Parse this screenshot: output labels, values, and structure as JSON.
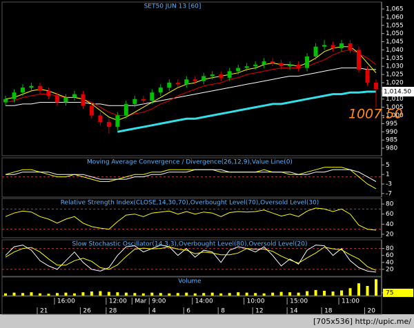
{
  "chart_data": [
    {
      "type": "candlestick",
      "title": "SET50 JUN 13  [60]",
      "open": [
        1008,
        1010,
        1014,
        1017,
        1018,
        1015,
        1012,
        1008,
        1011,
        1013,
        1006,
        1000,
        996,
        993,
        1000,
        1007,
        1010,
        1009,
        1014,
        1017,
        1020,
        1019,
        1022,
        1021,
        1024,
        1025,
        1023,
        1027,
        1029,
        1030,
        1031,
        1033,
        1032,
        1030,
        1031,
        1029,
        1036,
        1042,
        1043,
        1041,
        1044,
        1040,
        1028,
        1020
      ],
      "high": [
        1012,
        1016,
        1019,
        1020,
        1020,
        1017,
        1014,
        1013,
        1015,
        1015,
        1008,
        1002,
        998,
        1002,
        1009,
        1012,
        1012,
        1016,
        1019,
        1022,
        1022,
        1024,
        1024,
        1026,
        1027,
        1027,
        1029,
        1031,
        1032,
        1033,
        1035,
        1035,
        1034,
        1033,
        1033,
        1038,
        1044,
        1046,
        1045,
        1046,
        1046,
        1042,
        1030,
        1022
      ],
      "low": [
        1006,
        1008,
        1012,
        1015,
        1013,
        1010,
        1006,
        1006,
        1009,
        1004,
        998,
        994,
        989,
        991,
        998,
        1005,
        1007,
        1007,
        1012,
        1015,
        1017,
        1017,
        1019,
        1019,
        1022,
        1021,
        1021,
        1025,
        1027,
        1028,
        1029,
        1030,
        1028,
        1028,
        1027,
        1027,
        1034,
        1040,
        1039,
        1039,
        1038,
        1026,
        1018,
        1005
      ],
      "close": [
        1010,
        1014,
        1017,
        1018,
        1015,
        1012,
        1008,
        1011,
        1013,
        1006,
        1000,
        996,
        993,
        1000,
        1007,
        1010,
        1009,
        1014,
        1017,
        1020,
        1019,
        1022,
        1021,
        1024,
        1025,
        1023,
        1027,
        1029,
        1030,
        1031,
        1033,
        1032,
        1030,
        1031,
        1029,
        1036,
        1042,
        1043,
        1041,
        1044,
        1040,
        1028,
        1020,
        1016
      ],
      "color_up": "#00c000",
      "color_down": "#e00000",
      "overlays": [
        {
          "color": "#ffffff",
          "width": 1,
          "values": [
            1006,
            1006,
            1007,
            1007,
            1008,
            1008,
            1008,
            1008,
            1008,
            1008,
            1007,
            1007,
            1006,
            1006,
            1006,
            1006,
            1007,
            1008,
            1009,
            1010,
            1011,
            1012,
            1013,
            1014,
            1015,
            1016,
            1017,
            1018,
            1019,
            1020,
            1021,
            1022,
            1023,
            1024,
            1024,
            1025,
            1026,
            1027,
            1028,
            1029,
            1029,
            1029,
            1028,
            1028
          ]
        },
        {
          "color": "#e00000",
          "width": 1,
          "values": [
            1008,
            1009,
            1011,
            1012,
            1013,
            1013,
            1012,
            1011,
            1011,
            1010,
            1008,
            1005,
            1002,
            1000,
            1000,
            1001,
            1002,
            1004,
            1007,
            1009,
            1012,
            1014,
            1016,
            1018,
            1019,
            1020,
            1022,
            1023,
            1025,
            1026,
            1027,
            1028,
            1029,
            1029,
            1029,
            1030,
            1032,
            1034,
            1037,
            1039,
            1040,
            1038,
            1035,
            1031
          ]
        },
        {
          "color": "#ffff00",
          "width": 1,
          "values": [
            1010,
            1011,
            1013,
            1015,
            1016,
            1015,
            1013,
            1011,
            1011,
            1010,
            1007,
            1003,
            999,
            997,
            999,
            1002,
            1005,
            1008,
            1011,
            1014,
            1017,
            1019,
            1020,
            1022,
            1023,
            1024,
            1025,
            1026,
            1028,
            1029,
            1031,
            1032,
            1031,
            1031,
            1030,
            1032,
            1035,
            1039,
            1041,
            1042,
            1042,
            1038,
            1032,
            1026
          ]
        },
        {
          "color": "#33e0e8",
          "width": 3,
          "values": [
            null,
            null,
            null,
            null,
            null,
            null,
            null,
            null,
            null,
            null,
            null,
            null,
            null,
            990,
            991,
            992,
            993,
            994,
            995,
            996,
            997,
            998,
            998,
            999,
            1000,
            1001,
            1002,
            1003,
            1004,
            1005,
            1006,
            1007,
            1007,
            1008,
            1009,
            1010,
            1011,
            1012,
            1013,
            1013,
            1014,
            1014,
            1014.5,
            1014.5
          ]
        }
      ],
      "ylim": [
        975.4,
        1069.2
      ],
      "yticks": [
        980,
        985,
        990,
        995,
        {
          "value": 1000,
          "label": "1,000"
        },
        {
          "value": 1005,
          "label": "1,005"
        },
        {
          "value": 1010,
          "label": "1,010"
        },
        {
          "value": 1015,
          "label": "1,015"
        },
        {
          "value": 1020,
          "label": "1,020"
        },
        {
          "value": 1025,
          "label": "1,025"
        },
        {
          "value": 1030,
          "label": "1,030"
        },
        {
          "value": 1035,
          "label": "1,035"
        },
        {
          "value": 1040,
          "label": "1,040"
        },
        {
          "value": 1045,
          "label": "1,045"
        },
        {
          "value": 1050,
          "label": "1,050"
        },
        {
          "value": 1055,
          "label": "1,055"
        },
        {
          "value": 1060,
          "label": "1,060"
        },
        {
          "value": 1065,
          "label": "1,065"
        }
      ],
      "last_price": {
        "value": 1014.5,
        "label": "1,014.50"
      },
      "annotation": "1007.50",
      "annotation_color": "#ff8c1a"
    },
    {
      "type": "line",
      "title": "Moving Average Convergence / Divergence(26,12,9),Value Line(0)",
      "series": [
        {
          "color": "#ffff00",
          "values": [
            1,
            2,
            3,
            3,
            2,
            1,
            0,
            0,
            1,
            0,
            -1,
            -2,
            -2,
            -1,
            0,
            1,
            1,
            2,
            2,
            3,
            3,
            3,
            3,
            3,
            3,
            2,
            2,
            2,
            2,
            2,
            3,
            2,
            2,
            1,
            1,
            2,
            3,
            4,
            4,
            4,
            3,
            0,
            -3,
            -5
          ]
        },
        {
          "color": "#ffffff",
          "values": [
            1,
            1,
            2,
            2,
            2,
            2,
            1,
            1,
            1,
            1,
            0,
            -1,
            -1,
            -1,
            -1,
            0,
            0,
            1,
            1,
            2,
            2,
            2,
            3,
            3,
            3,
            3,
            2,
            2,
            2,
            2,
            2,
            2,
            2,
            2,
            1,
            1,
            2,
            2,
            3,
            3,
            3,
            2,
            0,
            -2
          ]
        }
      ],
      "ylim": [
        -8.5,
        8
      ],
      "yticks": [
        5,
        1,
        -3,
        -7
      ],
      "ref_lines": [
        0
      ]
    },
    {
      "type": "line",
      "title": "Relative Strength Index(CLOSE,14,30,70),Overbought Level(70),Oversold Level(30)",
      "series": [
        {
          "color": "#ffff00",
          "values": [
            55,
            62,
            66,
            64,
            55,
            50,
            42,
            50,
            55,
            42,
            35,
            32,
            30,
            45,
            58,
            60,
            55,
            62,
            64,
            66,
            60,
            65,
            60,
            64,
            62,
            55,
            63,
            65,
            64,
            65,
            68,
            62,
            56,
            60,
            55,
            66,
            72,
            70,
            65,
            70,
            60,
            38,
            30,
            28
          ]
        }
      ],
      "ylim": [
        13,
        91
      ],
      "yticks": [
        80,
        60,
        40,
        20
      ],
      "ref_lines": [
        70,
        30
      ]
    },
    {
      "type": "line",
      "title": "Slow Stochastic Oscillator(14,3,3),Overbought Level(80),Oversold Level(20)",
      "series": [
        {
          "color": "#ffffff",
          "values": [
            60,
            85,
            90,
            75,
            45,
            30,
            20,
            45,
            70,
            40,
            20,
            15,
            25,
            60,
            85,
            88,
            70,
            80,
            90,
            85,
            60,
            80,
            55,
            75,
            70,
            40,
            75,
            85,
            80,
            70,
            85,
            60,
            30,
            50,
            35,
            75,
            90,
            88,
            60,
            80,
            45,
            25,
            15,
            12
          ]
        },
        {
          "color": "#ffff00",
          "values": [
            55,
            70,
            80,
            83,
            70,
            50,
            32,
            32,
            45,
            52,
            43,
            25,
            20,
            33,
            57,
            78,
            81,
            79,
            80,
            85,
            78,
            75,
            65,
            70,
            67,
            62,
            62,
            67,
            80,
            78,
            78,
            72,
            58,
            47,
            38,
            53,
            67,
            84,
            79,
            76,
            62,
            50,
            28,
            17
          ]
        }
      ],
      "ylim": [
        0,
        105
      ],
      "yticks": [
        80,
        60,
        40,
        20
      ],
      "ref_lines": [
        80,
        20
      ]
    },
    {
      "type": "bar",
      "title": "Volume",
      "color": "#ffff00",
      "values": [
        60,
        80,
        70,
        90,
        60,
        50,
        70,
        80,
        60,
        90,
        110,
        120,
        100,
        90,
        80,
        70,
        60,
        80,
        70,
        60,
        70,
        80,
        60,
        70,
        80,
        60,
        70,
        90,
        80,
        70,
        60,
        80,
        100,
        90,
        80,
        120,
        150,
        130,
        110,
        140,
        200,
        330,
        260,
        440
      ],
      "ylim": [
        0,
        500
      ],
      "yticks": [
        75
      ]
    }
  ],
  "x_axis": {
    "time_labels": [
      null,
      null,
      null,
      null,
      null,
      null,
      "16:00",
      null,
      null,
      null,
      null,
      null,
      "12:00",
      null,
      null,
      "Mar",
      null,
      "9:00",
      null,
      null,
      null,
      null,
      "14:00",
      null,
      null,
      null,
      null,
      null,
      "10:00",
      null,
      null,
      null,
      null,
      "15:00",
      null,
      null,
      null,
      null,
      null,
      "11:00",
      null,
      null,
      null,
      null
    ],
    "date_labels": [
      null,
      null,
      null,
      null,
      "21",
      null,
      null,
      null,
      null,
      "26",
      null,
      null,
      "28",
      null,
      null,
      null,
      null,
      "4",
      null,
      null,
      null,
      "6",
      null,
      null,
      null,
      "8",
      null,
      null,
      null,
      "12",
      null,
      null,
      null,
      "14",
      null,
      null,
      null,
      "18",
      null,
      null,
      null,
      null,
      "20",
      null
    ]
  },
  "watermark": "[705x536] http://upic.me/"
}
